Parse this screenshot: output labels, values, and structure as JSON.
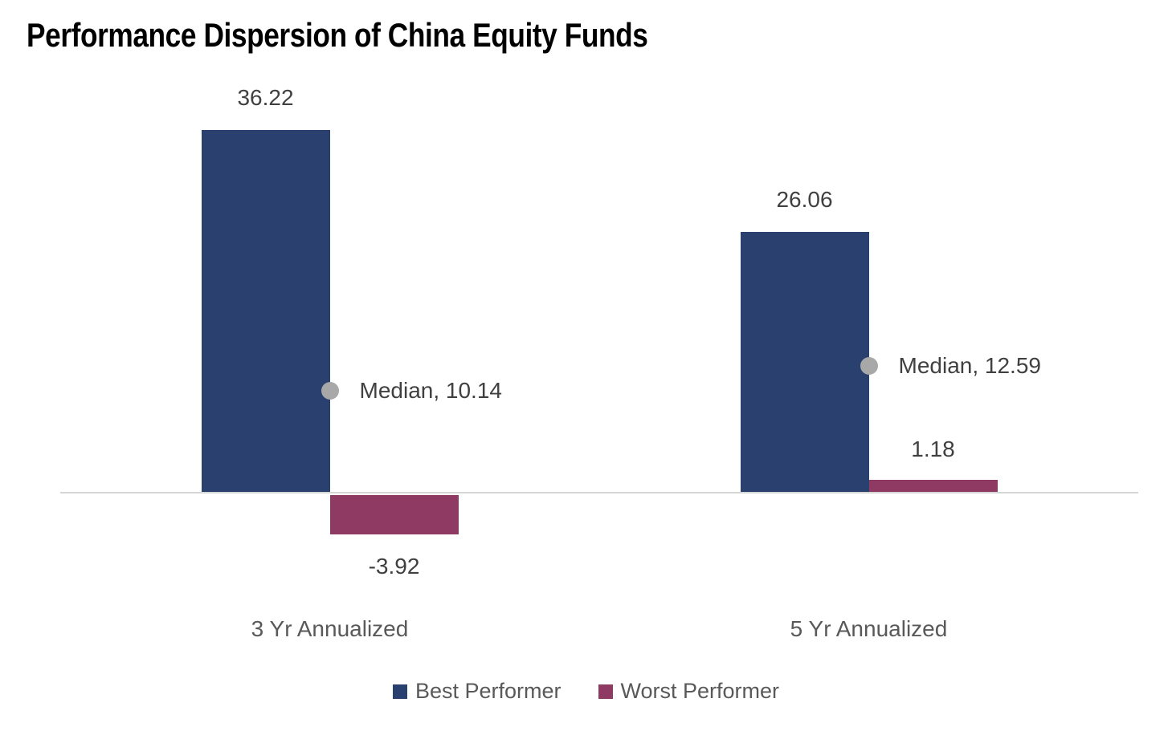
{
  "title": "Performance Dispersion of China Equity Funds",
  "chart_data": {
    "type": "bar",
    "title": "Performance Dispersion of China Equity Funds",
    "categories": [
      "3 Yr Annualized",
      "5 Yr Annualized"
    ],
    "series": [
      {
        "name": "Best Performer",
        "color": "#2a406f",
        "values": [
          36.22,
          26.06
        ]
      },
      {
        "name": "Worst Performer",
        "color": "#8e3a62",
        "values": [
          -3.92,
          1.18
        ]
      }
    ],
    "median_series": {
      "name": "Median",
      "color": "#a8a8a8",
      "values": [
        10.14,
        12.59
      ]
    },
    "labels": {
      "best": [
        "36.22",
        "26.06"
      ],
      "worst": [
        "-3.92",
        "1.18"
      ],
      "median": [
        "Median, 10.14",
        "Median, 12.59"
      ]
    },
    "axis": {
      "baseline_value": 0,
      "ylim": [
        -8,
        40
      ],
      "grid": false,
      "y_axis_visible": false
    },
    "legend_position": "bottom"
  },
  "legend": {
    "items": [
      {
        "label": "Best Performer",
        "color": "#2a406f"
      },
      {
        "label": "Worst Performer",
        "color": "#8e3a62"
      }
    ]
  }
}
